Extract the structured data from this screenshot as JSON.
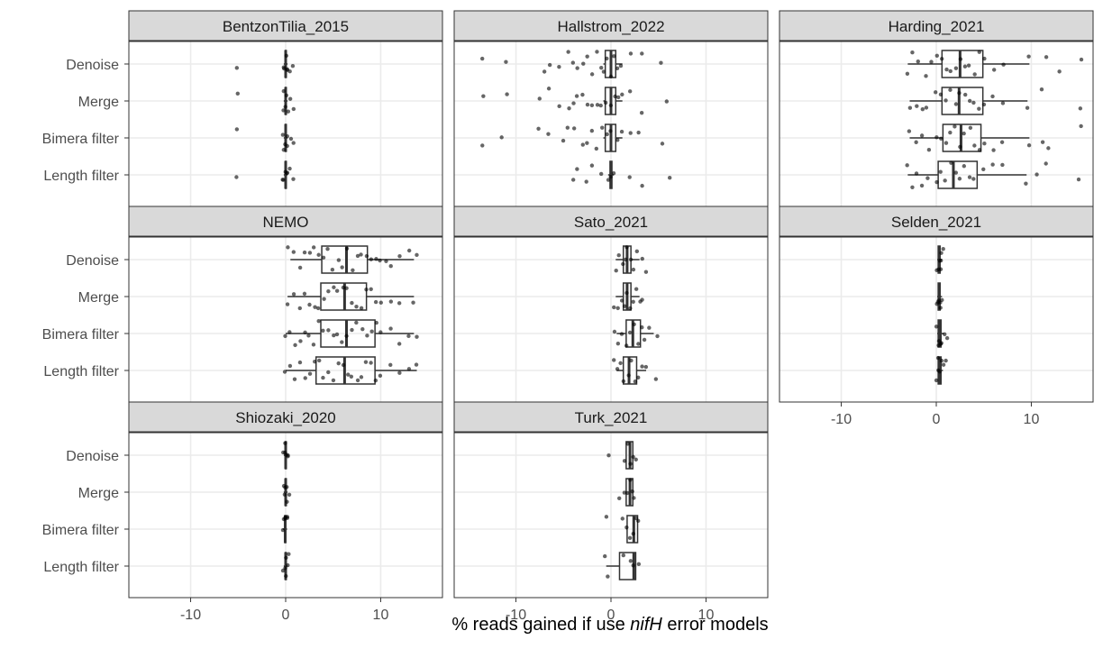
{
  "chart_data": {
    "type": "boxplot",
    "layout": "facet_wrap",
    "facet_columns": 3,
    "categories": [
      "Denoise",
      "Merge",
      "Bimera filter",
      "Length filter"
    ],
    "xlabel_parts": [
      "% reads gained if use ",
      "nifH",
      " error models"
    ],
    "xlim": [
      -16.5,
      16.5
    ],
    "xticks": [
      -10,
      0,
      10
    ],
    "grid": true,
    "colors": {
      "box": "#333333",
      "point": "#000000",
      "strip": "#d9d9d9",
      "strip_border": "#333333",
      "grid_major": "#ebebeb",
      "grid_minor": "#f5f5f5",
      "panel_border": "#333333"
    },
    "facets": [
      {
        "name": "BentzonTilia_2015",
        "boxes": [
          {
            "category": "Denoise",
            "whisker_low": -0.2,
            "q1": -0.05,
            "median": 0,
            "q3": 0.05,
            "whisker_high": 0.2,
            "points": [
              -5.1,
              -0.3,
              -0.2,
              0,
              0.1,
              0.2,
              0.5,
              0.8
            ]
          },
          {
            "category": "Merge",
            "whisker_low": -0.2,
            "q1": -0.05,
            "median": 0,
            "q3": 0.05,
            "whisker_high": 0.2,
            "points": [
              -5.1,
              -0.3,
              -0.2,
              0,
              0.1,
              0.2,
              0.5,
              0.9
            ]
          },
          {
            "category": "Bimera filter",
            "whisker_low": -0.2,
            "q1": -0.05,
            "median": 0,
            "q3": 0.05,
            "whisker_high": 0.2,
            "points": [
              -5.1,
              -0.3,
              -0.2,
              0,
              0.1,
              0.2,
              0.5,
              0.9
            ]
          },
          {
            "category": "Length filter",
            "whisker_low": -0.2,
            "q1": -0.05,
            "median": 0,
            "q3": 0.05,
            "whisker_high": 0.2,
            "points": [
              -5.1,
              -0.3,
              -0.2,
              0,
              0.1,
              0.2,
              0.5,
              0.9
            ]
          }
        ]
      },
      {
        "name": "Hallstrom_2022",
        "boxes": [
          {
            "category": "Denoise",
            "whisker_low": -0.8,
            "q1": -0.6,
            "median": 0,
            "q3": 0.5,
            "whisker_high": 1.2,
            "points": [
              -13.5,
              -11,
              -7,
              -6.5,
              -5.5,
              -4.5,
              -4,
              -3.5,
              -3,
              -2.5,
              -2,
              -1.5,
              -1,
              -0.8,
              -0.5,
              0,
              0.3,
              0.6,
              1,
              2,
              3.3,
              5.2
            ]
          },
          {
            "category": "Merge",
            "whisker_low": -0.8,
            "q1": -0.6,
            "median": 0,
            "q3": 0.5,
            "whisker_high": 1.2,
            "points": [
              -13.5,
              -11,
              -7.5,
              -6.5,
              -5.5,
              -4.5,
              -4,
              -3.5,
              -3,
              -2.5,
              -2,
              -1.5,
              -1,
              -0.5,
              0,
              0.4,
              0.8,
              1.2,
              2,
              3.2,
              5.8
            ]
          },
          {
            "category": "Bimera filter",
            "whisker_low": -0.8,
            "q1": -0.6,
            "median": 0,
            "q3": 0.5,
            "whisker_high": 1.2,
            "points": [
              -13.5,
              -11.5,
              -7.7,
              -6.5,
              -5,
              -4.5,
              -3.8,
              -3,
              -2.5,
              -2,
              -1.5,
              -1,
              -0.5,
              0,
              0.6,
              1.1,
              2,
              2.9,
              5.4
            ]
          },
          {
            "category": "Length filter",
            "whisker_low": -0.3,
            "q1": -0.1,
            "median": 0,
            "q3": 0.1,
            "whisker_high": 0.3,
            "points": [
              -4,
              -3.5,
              -2.5,
              -2,
              -1,
              -0.3,
              0,
              0.3,
              2,
              3.2,
              6.2
            ]
          }
        ]
      },
      {
        "name": "Harding_2021",
        "boxes": [
          {
            "category": "Denoise",
            "whisker_low": -3,
            "q1": 0.6,
            "median": 2.5,
            "q3": 4.9,
            "whisker_high": 9.8,
            "points": [
              -3,
              -2.5,
              -2,
              -1,
              -0.5,
              0,
              0.5,
              1,
              1.5,
              2,
              2.5,
              3,
              3.5,
              4,
              4.5,
              5,
              6,
              7,
              9.8,
              11.5,
              13,
              15.2
            ]
          },
          {
            "category": "Merge",
            "whisker_low": -2.8,
            "q1": 0.6,
            "median": 2.4,
            "q3": 4.9,
            "whisker_high": 9.6,
            "points": [
              -2.8,
              -2,
              -1.5,
              -1,
              0,
              0.5,
              1,
              1.5,
              2,
              2.5,
              3,
              3.5,
              4,
              4.5,
              5,
              6,
              7,
              9.6,
              11,
              15.1
            ]
          },
          {
            "category": "Bimera filter",
            "whisker_low": -2.8,
            "q1": 0.7,
            "median": 2.6,
            "q3": 4.7,
            "whisker_high": 9.8,
            "points": [
              -2.8,
              -2.2,
              -1.5,
              -0.8,
              0,
              0.5,
              1,
              1.5,
              2,
              2.5,
              3,
              3.5,
              4,
              4.5,
              5,
              6,
              7,
              9.8,
              11.2,
              11.8,
              15.2
            ]
          },
          {
            "category": "Length filter",
            "whisker_low": -3,
            "q1": 0.2,
            "median": 1.8,
            "q3": 4.3,
            "whisker_high": 9.5,
            "points": [
              -3,
              -2.5,
              -2,
              -1.5,
              -1,
              0,
              0.5,
              1,
              1.5,
              2,
              2.5,
              3,
              3.5,
              4,
              5,
              6,
              7,
              9.5,
              10.5,
              11.5,
              15
            ]
          }
        ]
      },
      {
        "name": "NEMO",
        "boxes": [
          {
            "category": "Denoise",
            "whisker_low": 0.5,
            "q1": 3.8,
            "median": 6.4,
            "q3": 8.6,
            "whisker_high": 13.5,
            "points": [
              0.3,
              0.8,
              1.5,
              2,
              2.5,
              3,
              3.5,
              4,
              4.5,
              5,
              5.5,
              6,
              6.5,
              7,
              7.5,
              8,
              8.5,
              9,
              9.5,
              10,
              10.5,
              11,
              12,
              13,
              13.8
            ]
          },
          {
            "category": "Merge",
            "whisker_low": 0.2,
            "q1": 3.7,
            "median": 6.2,
            "q3": 8.5,
            "whisker_high": 13.5,
            "points": [
              0.2,
              0.8,
              1.5,
              2,
              2.5,
              3,
              3.5,
              4,
              4.5,
              5,
              5.5,
              6,
              6.5,
              7,
              7.5,
              8,
              8.5,
              9,
              9.5,
              10,
              11,
              12,
              13.5
            ]
          },
          {
            "category": "Bimera filter",
            "whisker_low": 0,
            "q1": 3.7,
            "median": 6.4,
            "q3": 9.4,
            "whisker_high": 13.5,
            "points": [
              0,
              0.5,
              1,
              1.5,
              2,
              2.5,
              3,
              3.5,
              4,
              4.5,
              5,
              5.5,
              6,
              6.5,
              7,
              7.5,
              8,
              8.5,
              9,
              9.5,
              10,
              11,
              12,
              13,
              13.8
            ]
          },
          {
            "category": "Length filter",
            "whisker_low": 0,
            "q1": 3.2,
            "median": 6.2,
            "q3": 9.4,
            "whisker_high": 13.8,
            "points": [
              0,
              0.5,
              1,
              1.5,
              2,
              2.5,
              3,
              3.5,
              4,
              4.5,
              5,
              5.5,
              6,
              6.5,
              7,
              7.5,
              8,
              8.5,
              9,
              9.5,
              10,
              11,
              12,
              13,
              13.8
            ]
          }
        ]
      },
      {
        "name": "Sato_2021",
        "boxes": [
          {
            "category": "Denoise",
            "whisker_low": 0.5,
            "q1": 1.3,
            "median": 1.7,
            "q3": 2.1,
            "whisker_high": 3,
            "points": [
              0.5,
              0.9,
              1.2,
              1.5,
              1.7,
              2,
              2.3,
              2.7,
              3.3,
              3.6
            ]
          },
          {
            "category": "Merge",
            "whisker_low": 0.5,
            "q1": 1.3,
            "median": 1.7,
            "q3": 2.1,
            "whisker_high": 3,
            "points": [
              0.4,
              0.8,
              1.1,
              1.4,
              1.7,
              2,
              2.3,
              2.7,
              3,
              3.3
            ]
          },
          {
            "category": "Bimera filter",
            "whisker_low": 0.6,
            "q1": 1.6,
            "median": 2.3,
            "q3": 3.1,
            "whisker_high": 4.5,
            "points": [
              0.3,
              0.7,
              1.2,
              1.6,
              2,
              2.4,
              2.8,
              3.2,
              3.6,
              4,
              4.9
            ]
          },
          {
            "category": "Length filter",
            "whisker_low": 0.6,
            "q1": 1.3,
            "median": 1.9,
            "q3": 2.7,
            "whisker_high": 3.7,
            "points": [
              0.3,
              0.7,
              1,
              1.4,
              1.8,
              2.1,
              2.5,
              2.9,
              3.3,
              3.7,
              4.8
            ]
          }
        ]
      },
      {
        "name": "Selden_2021",
        "boxes": [
          {
            "category": "Denoise",
            "whisker_low": 0.1,
            "q1": 0.2,
            "median": 0.3,
            "q3": 0.4,
            "whisker_high": 0.6,
            "points": [
              0.1,
              0.2,
              0.3,
              0.4,
              0.5,
              0.6,
              0.8
            ]
          },
          {
            "category": "Merge",
            "whisker_low": 0.1,
            "q1": 0.2,
            "median": 0.3,
            "q3": 0.4,
            "whisker_high": 0.6,
            "points": [
              0.1,
              0.2,
              0.3,
              0.4,
              0.5,
              0.6
            ]
          },
          {
            "category": "Bimera filter",
            "whisker_low": 0.1,
            "q1": 0.2,
            "median": 0.3,
            "q3": 0.5,
            "whisker_high": 0.8,
            "points": [
              0.1,
              0.2,
              0.3,
              0.4,
              0.5,
              0.8,
              1.1
            ]
          },
          {
            "category": "Length filter",
            "whisker_low": 0.1,
            "q1": 0.2,
            "median": 0.3,
            "q3": 0.5,
            "whisker_high": 0.7,
            "points": [
              0.1,
              0.2,
              0.3,
              0.4,
              0.5,
              0.7,
              1
            ]
          }
        ]
      },
      {
        "name": "Shiozaki_2020",
        "boxes": [
          {
            "category": "Denoise",
            "whisker_low": -0.2,
            "q1": -0.05,
            "median": 0,
            "q3": 0.05,
            "whisker_high": 0.2,
            "points": [
              -0.2,
              -0.1,
              0,
              0.1,
              0.2,
              0.3
            ]
          },
          {
            "category": "Merge",
            "whisker_low": -0.2,
            "q1": -0.05,
            "median": 0,
            "q3": 0.05,
            "whisker_high": 0.2,
            "points": [
              -0.2,
              -0.1,
              0,
              0.1,
              0.2,
              0.3
            ]
          },
          {
            "category": "Bimera filter",
            "whisker_low": -0.3,
            "q1": -0.1,
            "median": -0.05,
            "q3": 0,
            "whisker_high": 0.15,
            "points": [
              -0.3,
              -0.2,
              -0.1,
              0,
              0.1,
              0.2
            ]
          },
          {
            "category": "Length filter",
            "whisker_low": -0.2,
            "q1": -0.05,
            "median": 0,
            "q3": 0.05,
            "whisker_high": 0.2,
            "points": [
              -0.2,
              -0.1,
              0,
              0.1,
              0.2,
              0.3
            ]
          }
        ]
      },
      {
        "name": "Turk_2021",
        "boxes": [
          {
            "category": "Denoise",
            "whisker_low": 1.6,
            "q1": 1.6,
            "median": 2,
            "q3": 2.3,
            "whisker_high": 2.3,
            "points": [
              -0.3,
              1.5,
              1.8,
              2.1,
              2.3,
              2.6
            ]
          },
          {
            "category": "Merge",
            "whisker_low": 1.6,
            "q1": 1.6,
            "median": 2,
            "q3": 2.3,
            "whisker_high": 2.3,
            "points": [
              0.8,
              1.5,
              1.8,
              2.1,
              2.3,
              2.5
            ]
          },
          {
            "category": "Bimera filter",
            "whisker_low": 1.6,
            "q1": 1.7,
            "median": 2.4,
            "q3": 2.8,
            "whisker_high": 2.8,
            "points": [
              -0.4,
              1.2,
              1.6,
              2,
              2.4,
              2.6,
              2.9
            ]
          },
          {
            "category": "Length filter",
            "whisker_low": -0.5,
            "q1": 0.9,
            "median": 2.4,
            "q3": 2.6,
            "whisker_high": 2.6,
            "points": [
              -0.7,
              -0.3,
              1.4,
              2,
              2.4,
              2.9
            ]
          }
        ]
      }
    ]
  }
}
